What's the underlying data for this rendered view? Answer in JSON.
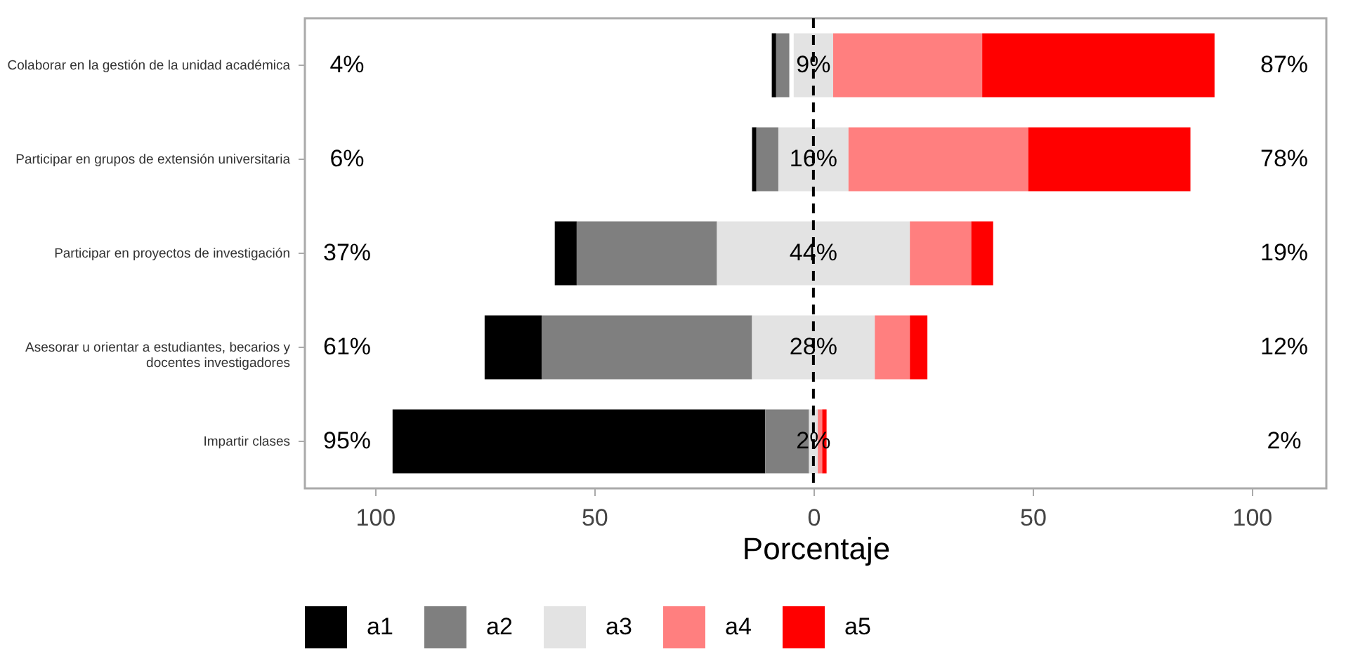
{
  "chart_data": {
    "type": "bar",
    "orientation": "horizontal",
    "xlabel": "Porcentaje",
    "categories": [
      "Colaborar en la gestión de la unidad académica",
      "Participar en grupos de extensión universitaria",
      "Participar en proyectos de investigación",
      "Asesorar u orientar a estudiantes, becarios y\ndocentes investigadores",
      "Impartir clases"
    ],
    "series": [
      {
        "name": "a1",
        "color": "#000000",
        "values": [
          1,
          1,
          5,
          13,
          85
        ],
        "base": [
          -9.5,
          -14,
          -59,
          -75,
          -96
        ]
      },
      {
        "name": "a2",
        "color": "#7f7f7f",
        "values": [
          3,
          5,
          32,
          48,
          10
        ],
        "base": [
          -8.5,
          -13,
          -54,
          -62,
          -11
        ]
      },
      {
        "name": "a3",
        "color": "#e3e3e3",
        "values": [
          9,
          16,
          44,
          28,
          2
        ],
        "base": [
          -4.5,
          -8,
          -22,
          -14,
          -1
        ],
        "value_labels": [
          "9%",
          "16%",
          "44%",
          "28%",
          "2%"
        ]
      },
      {
        "name": "a4",
        "color": "#ff7f7f",
        "values": [
          34,
          41,
          14,
          8,
          1
        ],
        "base": [
          4.5,
          8,
          22,
          14,
          1
        ]
      },
      {
        "name": "a5",
        "color": "#ff0000",
        "values": [
          53,
          37,
          5,
          4,
          1
        ],
        "base": [
          38.5,
          49,
          36,
          22,
          2
        ]
      }
    ],
    "xlim": [
      -116,
      117
    ],
    "xticks": [
      {
        "value": -100,
        "label": "100"
      },
      {
        "value": -50,
        "label": "50"
      },
      0,
      50,
      100
    ],
    "ref_lines": [
      {
        "axis": "x",
        "value": 0,
        "line_style": "dashed",
        "color": "#000000"
      }
    ],
    "annotations": [
      "4%",
      "87%",
      "6%",
      "78%",
      "37%",
      "19%",
      "61%",
      "12%",
      "95%",
      "2%"
    ],
    "grid": false,
    "legend": "bottom"
  }
}
